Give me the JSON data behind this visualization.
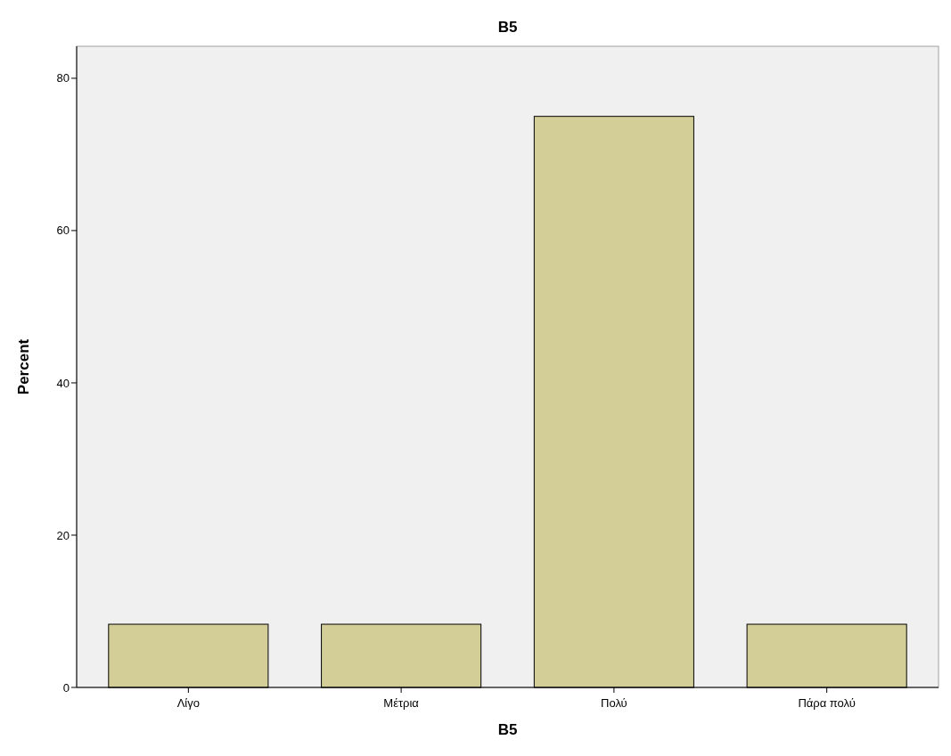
{
  "chart_data": {
    "type": "bar",
    "title": "B5",
    "xlabel": "B5",
    "ylabel": "Percent",
    "categories": [
      "Λίγο",
      "Μέτρια",
      "Πολύ",
      "Πάρα πολύ"
    ],
    "values": [
      8.3,
      8.3,
      75,
      8.3
    ],
    "color": "#d3ce98",
    "ylim": [
      0,
      84.2
    ],
    "yticks": [
      0,
      20,
      40,
      60,
      80
    ],
    "grid": false
  }
}
